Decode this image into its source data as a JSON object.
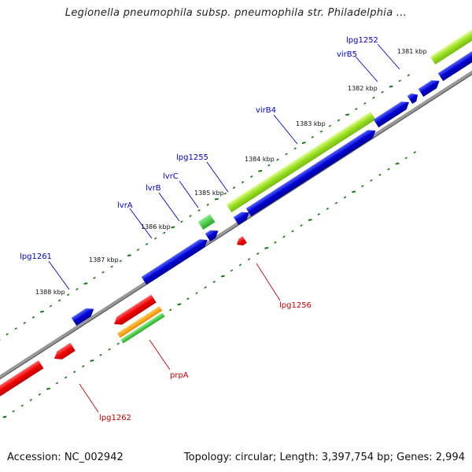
{
  "title": "Legionella pneumophila subsp. pneumophila str. Philadelphia ...",
  "footer": {
    "accession": "Accession: NC_002942",
    "stats": "Topology: circular; Length: 3,397,754 bp; Genes: 2,994"
  },
  "colors": {
    "forward_gene": "#0000cc",
    "reverse_gene": "#ee0000",
    "label_forward": "#0000cc",
    "label_reverse": "#cc0000",
    "green_feature": "#99dd22",
    "tick": "#117711",
    "backbone": "#888888"
  },
  "scale_labels": [
    "1381 kbp",
    "1382 kbp",
    "1383 kbp",
    "1384 kbp",
    "1385 kbp",
    "1386 kbp",
    "1387 kbp",
    "1388 kbp"
  ],
  "gene_labels_top": [
    "lpg1252",
    "virB5",
    "virB4",
    "lpg1255",
    "lvrC",
    "lvrB",
    "lvrA",
    "lpg1261"
  ],
  "gene_labels_bottom": [
    "lpg1256",
    "prpA",
    "lpg1262"
  ]
}
